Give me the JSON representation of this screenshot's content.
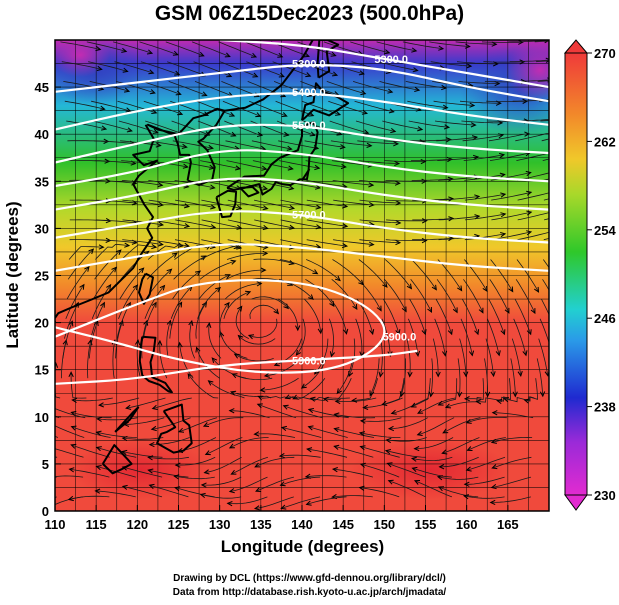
{
  "title": "GSM 06Z15Dec2023 (500.0hPa)",
  "x_label": "Longitude (degrees)",
  "y_label": "Latitude  (degrees)",
  "credit_line1": "Drawing by DCL (https://www.gfd-dennou.org/library/dcl/)",
  "credit_line2": "Data from http://database.rish.kyoto-u.ac.jp/arch/jmadata/",
  "map": {
    "lon_range": [
      110,
      170
    ],
    "lat_range": [
      0,
      50
    ],
    "lon_ticks": [
      "110",
      "115",
      "120",
      "125",
      "130",
      "135",
      "140",
      "145",
      "150",
      "155",
      "160",
      "165"
    ],
    "lat_ticks": [
      "0",
      "5",
      "10",
      "15",
      "20",
      "25",
      "30",
      "35",
      "40",
      "45"
    ],
    "colorbar_ticks": [
      "230",
      "238",
      "246",
      "254",
      "262",
      "270"
    ],
    "colorbar_range": [
      230,
      270
    ],
    "colors": {
      "warm": "#f04a3c",
      "orange": "#f39a2a",
      "yellow": "#e5d82a",
      "green": "#31c42a",
      "cyan": "#22c5c6",
      "blue": "#2a3ac8",
      "magenta": "#d62ab8",
      "contour": "#ffffff"
    },
    "contours": [
      {
        "label": "5300.0",
        "pts": [
          [
            110,
            44.5
          ],
          [
            120,
            45.5
          ],
          [
            130,
            46.5
          ],
          [
            140,
            47.5
          ],
          [
            150,
            47
          ],
          [
            160,
            45
          ],
          [
            170,
            43.5
          ]
        ]
      },
      {
        "label": "5300.0",
        "pts": [
          [
            130,
            50
          ],
          [
            140,
            49.5
          ],
          [
            150,
            48
          ],
          [
            160,
            46.5
          ],
          [
            170,
            45
          ]
        ]
      },
      {
        "label": "5400.0",
        "pts": [
          [
            110,
            40.5
          ],
          [
            120,
            42.5
          ],
          [
            130,
            44
          ],
          [
            140,
            44.5
          ],
          [
            150,
            43.5
          ],
          [
            160,
            42
          ],
          [
            170,
            41
          ]
        ]
      },
      {
        "label": "5500.0",
        "pts": [
          [
            110,
            37
          ],
          [
            120,
            39
          ],
          [
            130,
            41
          ],
          [
            140,
            41
          ],
          [
            150,
            39.5
          ],
          [
            160,
            38.5
          ],
          [
            170,
            38
          ]
        ]
      },
      {
        "label": "",
        "pts": [
          [
            110,
            34.5
          ],
          [
            120,
            36
          ],
          [
            130,
            38.5
          ],
          [
            140,
            38
          ],
          [
            150,
            36.5
          ],
          [
            160,
            35.5
          ],
          [
            170,
            35
          ]
        ]
      },
      {
        "label": "",
        "pts": [
          [
            110,
            32
          ],
          [
            120,
            33.5
          ],
          [
            130,
            35.5
          ],
          [
            140,
            35
          ],
          [
            150,
            33.5
          ],
          [
            160,
            32.5
          ],
          [
            170,
            32
          ]
        ]
      },
      {
        "label": "5700.0",
        "pts": [
          [
            110,
            29
          ],
          [
            120,
            30.5
          ],
          [
            130,
            32
          ],
          [
            140,
            31.5
          ],
          [
            150,
            30
          ],
          [
            160,
            29
          ],
          [
            170,
            28.5
          ]
        ]
      },
      {
        "label": "",
        "pts": [
          [
            110,
            25.5
          ],
          [
            120,
            27
          ],
          [
            130,
            28.5
          ],
          [
            140,
            28
          ],
          [
            150,
            27
          ],
          [
            160,
            26
          ],
          [
            170,
            25.5
          ]
        ]
      },
      {
        "label": "5900.0",
        "pts": [
          [
            110,
            18.5
          ],
          [
            120,
            22
          ],
          [
            128,
            24.5
          ],
          [
            140,
            24.5
          ],
          [
            148,
            22
          ],
          [
            151,
            18.5
          ],
          [
            145,
            15
          ],
          [
            135,
            14.5
          ],
          [
            125,
            16
          ],
          [
            117,
            18
          ],
          [
            110,
            19.5
          ]
        ]
      },
      {
        "label": "5900.0",
        "pts": [
          [
            110,
            13.5
          ],
          [
            120,
            14
          ],
          [
            130,
            15.5
          ],
          [
            140,
            16
          ],
          [
            150,
            16.5
          ],
          [
            154,
            17
          ]
        ]
      }
    ],
    "coastline": [
      [
        121,
        41
      ],
      [
        122,
        39.5
      ],
      [
        121.5,
        38.2
      ],
      [
        119.5,
        37.8
      ],
      [
        120.8,
        36.7
      ],
      [
        122.4,
        37.2
      ],
      [
        120.2,
        35.6
      ],
      [
        119.5,
        34.7
      ],
      [
        120.8,
        32.6
      ],
      [
        121.9,
        31.2
      ],
      [
        121.2,
        30
      ],
      [
        121.8,
        29
      ],
      [
        120.5,
        27.3
      ],
      [
        119.5,
        25.8
      ],
      [
        118,
        24.5
      ],
      [
        116.5,
        23.2
      ],
      [
        114.3,
        22.4
      ],
      [
        112,
        21.6
      ],
      [
        110.4,
        21
      ],
      [
        110,
        20.5
      ]
    ],
    "coastline2": [
      [
        110,
        20.2
      ],
      [
        109.5,
        18.5
      ],
      [
        108.5,
        16
      ],
      [
        109.2,
        12.5
      ],
      [
        109,
        11.2
      ],
      [
        106.5,
        10.2
      ],
      [
        105,
        8.8
      ],
      [
        104.8,
        10.2
      ],
      [
        103,
        11
      ],
      [
        102,
        12
      ]
    ],
    "islands": [
      [
        [
          121,
          25.2
        ],
        [
          121.9,
          24.8
        ],
        [
          121.5,
          23
        ],
        [
          120.8,
          22
        ],
        [
          120.2,
          23.2
        ],
        [
          120.6,
          24.6
        ],
        [
          121,
          25.2
        ]
      ],
      [
        [
          120.6,
          18.5
        ],
        [
          122.2,
          18.4
        ],
        [
          122,
          17
        ],
        [
          121.6,
          15.8
        ],
        [
          121.8,
          14.2
        ],
        [
          123.4,
          13.6
        ],
        [
          124.2,
          12.6
        ],
        [
          123.8,
          12.7
        ],
        [
          122.7,
          13.4
        ],
        [
          121.4,
          13.8
        ],
        [
          120.6,
          14.4
        ],
        [
          120.3,
          15.9
        ],
        [
          120.4,
          17.4
        ],
        [
          120.6,
          18.5
        ]
      ],
      [
        [
          123.2,
          10.6
        ],
        [
          125.4,
          11.3
        ],
        [
          125.6,
          9.6
        ],
        [
          126.3,
          9.1
        ],
        [
          126.6,
          7.2
        ],
        [
          125.6,
          6.4
        ],
        [
          124.4,
          6.2
        ],
        [
          122.4,
          7.2
        ],
        [
          122.9,
          8.2
        ],
        [
          123.6,
          8.4
        ],
        [
          124.6,
          8.9
        ],
        [
          123.2,
          10.6
        ]
      ],
      [
        [
          117.3,
          8.4
        ],
        [
          119.5,
          10.5
        ],
        [
          120.1,
          11
        ],
        [
          119.1,
          9.7
        ],
        [
          117.3,
          8.4
        ]
      ],
      [
        [
          115.8,
          5
        ],
        [
          117.2,
          7
        ],
        [
          118.8,
          5.5
        ],
        [
          119.3,
          5
        ],
        [
          118,
          4.4
        ],
        [
          117,
          4
        ],
        [
          115.8,
          5
        ]
      ],
      [
        [
          129.6,
          33.3
        ],
        [
          131,
          34
        ],
        [
          132,
          33.9
        ],
        [
          131.9,
          32.6
        ],
        [
          131.3,
          31.3
        ],
        [
          130.3,
          31.2
        ],
        [
          129.8,
          32.7
        ],
        [
          129.6,
          33.3
        ]
      ],
      [
        [
          132.5,
          34.3
        ],
        [
          133.5,
          33.4
        ],
        [
          134.7,
          33.8
        ],
        [
          134,
          34.4
        ],
        [
          132.5,
          34.3
        ]
      ],
      [
        [
          130.9,
          34.3
        ],
        [
          133,
          35.5
        ],
        [
          135.4,
          35.6
        ],
        [
          136.3,
          36.8
        ],
        [
          137.3,
          37.5
        ],
        [
          139.5,
          38.3
        ],
        [
          140,
          39.8
        ],
        [
          140,
          40.8
        ],
        [
          141.4,
          41.3
        ],
        [
          141.9,
          40.2
        ],
        [
          141.6,
          38.5
        ],
        [
          140.9,
          37.6
        ],
        [
          140.8,
          36.2
        ],
        [
          140.6,
          35.2
        ],
        [
          139.7,
          35.2
        ],
        [
          139.2,
          34.9
        ],
        [
          138.6,
          34.6
        ],
        [
          137.6,
          34.7
        ],
        [
          136.8,
          34.9
        ],
        [
          136.3,
          34.2
        ],
        [
          135.2,
          33.6
        ],
        [
          134.8,
          34.7
        ],
        [
          133,
          34.3
        ],
        [
          131.7,
          34.1
        ],
        [
          130.9,
          34.3
        ]
      ],
      [
        [
          140,
          41.5
        ],
        [
          140.4,
          43.1
        ],
        [
          141.4,
          43.4
        ],
        [
          141.7,
          45.4
        ],
        [
          142.6,
          44.5
        ],
        [
          144.2,
          44
        ],
        [
          145.6,
          43.3
        ],
        [
          143.3,
          42
        ],
        [
          141.4,
          42.6
        ],
        [
          140.3,
          41.7
        ],
        [
          140,
          41.5
        ]
      ],
      [
        [
          142,
          46
        ],
        [
          143.3,
          46.7
        ],
        [
          143,
          48.8
        ],
        [
          144.4,
          49.5
        ],
        [
          143.1,
          50
        ],
        [
          142.1,
          50
        ],
        [
          141.9,
          47.5
        ],
        [
          142,
          46
        ]
      ],
      [
        [
          126.1,
          35.1
        ],
        [
          126.5,
          37
        ],
        [
          126.3,
          37.8
        ],
        [
          125.2,
          37.8
        ],
        [
          124.9,
          39
        ],
        [
          124.5,
          39.9
        ],
        [
          121.3,
          41
        ],
        [
          122.5,
          40.5
        ],
        [
          124,
          40.2
        ],
        [
          125,
          40
        ],
        [
          126.8,
          41.7
        ],
        [
          128,
          42
        ],
        [
          129.7,
          42.7
        ],
        [
          130.6,
          42.5
        ],
        [
          129.6,
          41
        ],
        [
          128,
          39.5
        ],
        [
          127.4,
          39.2
        ],
        [
          128.5,
          38.3
        ],
        [
          129.4,
          36.5
        ],
        [
          129.1,
          35.2
        ],
        [
          127.5,
          34.6
        ],
        [
          126.1,
          35.1
        ]
      ],
      [
        [
          130.6,
          42.5
        ],
        [
          133.1,
          42.8
        ],
        [
          135.3,
          43.7
        ],
        [
          137.5,
          45.2
        ],
        [
          140.2,
          48.3
        ],
        [
          141.3,
          50
        ]
      ],
      [
        [
          140,
          35.1
        ],
        [
          140.9,
          36.3
        ]
      ]
    ]
  }
}
